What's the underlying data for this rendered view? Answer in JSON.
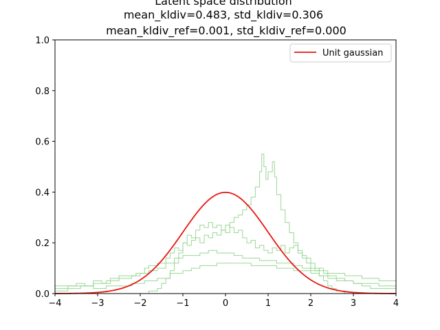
{
  "chart_data": {
    "type": "line",
    "title_lines": [
      "Latent space distribution",
      "mean_kldiv=0.483, std_kldiv=0.306",
      "mean_kldiv_ref=0.001, std_kldiv_ref=0.000"
    ],
    "xlim": [
      -4,
      4
    ],
    "ylim": [
      0,
      1.0
    ],
    "x_ticks": [
      -4,
      -3,
      -2,
      -1,
      0,
      1,
      2,
      3,
      4
    ],
    "x_tick_labels": [
      "−4",
      "−3",
      "−2",
      "−1",
      "0",
      "1",
      "2",
      "3",
      "4"
    ],
    "y_ticks": [
      0.0,
      0.2,
      0.4,
      0.6,
      0.8,
      1.0
    ],
    "y_tick_labels": [
      "0.0",
      "0.2",
      "0.4",
      "0.6",
      "0.8",
      "1.0"
    ],
    "legend": {
      "placement": "top-right",
      "entries": [
        "Unit gaussian"
      ]
    },
    "grid": false,
    "reference_curve": {
      "name": "Unit gaussian",
      "type": "normal_pdf",
      "mean": 0,
      "std": 1,
      "color": "#e8140e"
    },
    "histogram_color": "#8fd18a",
    "histograms": [
      {
        "values": [
          [
            -4.0,
            0.02
          ],
          [
            -3.7,
            0.03
          ],
          [
            -3.5,
            0.04
          ],
          [
            -3.3,
            0.03
          ],
          [
            -3.1,
            0.05
          ],
          [
            -2.9,
            0.04
          ],
          [
            -2.7,
            0.06
          ],
          [
            -2.5,
            0.07
          ],
          [
            -2.3,
            0.07
          ],
          [
            -2.1,
            0.08
          ],
          [
            -1.9,
            0.1
          ],
          [
            -1.8,
            0.11
          ],
          [
            -1.6,
            0.12
          ],
          [
            -1.4,
            0.14
          ],
          [
            -1.3,
            0.16
          ],
          [
            -1.2,
            0.18
          ],
          [
            -1.1,
            0.17
          ],
          [
            -1.0,
            0.2
          ],
          [
            -0.9,
            0.19
          ],
          [
            -0.8,
            0.21
          ],
          [
            -0.7,
            0.22
          ],
          [
            -0.6,
            0.2
          ],
          [
            -0.5,
            0.23
          ],
          [
            -0.4,
            0.22
          ],
          [
            -0.3,
            0.24
          ],
          [
            -0.2,
            0.23
          ],
          [
            -0.1,
            0.25
          ],
          [
            0.0,
            0.24
          ],
          [
            0.1,
            0.28
          ],
          [
            0.2,
            0.3
          ],
          [
            0.3,
            0.31
          ],
          [
            0.4,
            0.33
          ],
          [
            0.5,
            0.35
          ],
          [
            0.6,
            0.38
          ],
          [
            0.7,
            0.42
          ],
          [
            0.8,
            0.48
          ],
          [
            0.85,
            0.55
          ],
          [
            0.9,
            0.5
          ],
          [
            0.95,
            0.45
          ],
          [
            1.0,
            0.48
          ],
          [
            1.1,
            0.52
          ],
          [
            1.15,
            0.46
          ],
          [
            1.2,
            0.39
          ],
          [
            1.3,
            0.33
          ],
          [
            1.4,
            0.28
          ],
          [
            1.5,
            0.24
          ],
          [
            1.6,
            0.2
          ],
          [
            1.7,
            0.16
          ],
          [
            1.8,
            0.14
          ],
          [
            1.9,
            0.12
          ],
          [
            2.0,
            0.1
          ],
          [
            2.1,
            0.09
          ],
          [
            2.2,
            0.1
          ],
          [
            2.3,
            0.08
          ],
          [
            2.4,
            0.07
          ],
          [
            2.6,
            0.06
          ],
          [
            2.8,
            0.05
          ],
          [
            3.0,
            0.04
          ],
          [
            3.2,
            0.03
          ],
          [
            3.4,
            0.02
          ],
          [
            3.7,
            0.02
          ],
          [
            4.0,
            0.01
          ]
        ]
      },
      {
        "values": [
          [
            -4.0,
            0.01
          ],
          [
            -3.7,
            0.02
          ],
          [
            -3.4,
            0.03
          ],
          [
            -3.1,
            0.04
          ],
          [
            -2.8,
            0.05
          ],
          [
            -2.5,
            0.06
          ],
          [
            -2.2,
            0.07
          ],
          [
            -2.0,
            0.08
          ],
          [
            -1.8,
            0.09
          ],
          [
            -1.6,
            0.1
          ],
          [
            -1.4,
            0.12
          ],
          [
            -1.2,
            0.14
          ],
          [
            -1.0,
            0.15
          ],
          [
            -0.8,
            0.15
          ],
          [
            -0.6,
            0.16
          ],
          [
            -0.4,
            0.17
          ],
          [
            -0.2,
            0.16
          ],
          [
            0.0,
            0.16
          ],
          [
            0.2,
            0.15
          ],
          [
            0.4,
            0.14
          ],
          [
            0.6,
            0.14
          ],
          [
            0.8,
            0.13
          ],
          [
            1.0,
            0.13
          ],
          [
            1.2,
            0.12
          ],
          [
            1.4,
            0.12
          ],
          [
            1.6,
            0.11
          ],
          [
            1.8,
            0.1
          ],
          [
            2.0,
            0.09
          ],
          [
            2.2,
            0.09
          ],
          [
            2.4,
            0.08
          ],
          [
            2.6,
            0.08
          ],
          [
            2.8,
            0.07
          ],
          [
            3.0,
            0.07
          ],
          [
            3.2,
            0.06
          ],
          [
            3.4,
            0.06
          ],
          [
            3.6,
            0.05
          ],
          [
            3.8,
            0.05
          ],
          [
            4.0,
            0.05
          ]
        ]
      },
      {
        "values": [
          [
            -4.0,
            0.03
          ],
          [
            -3.7,
            0.03
          ],
          [
            -3.4,
            0.03
          ],
          [
            -3.1,
            0.02
          ],
          [
            -2.8,
            0.03
          ],
          [
            -2.5,
            0.03
          ],
          [
            -2.2,
            0.04
          ],
          [
            -1.9,
            0.05
          ],
          [
            -1.6,
            0.06
          ],
          [
            -1.3,
            0.08
          ],
          [
            -1.0,
            0.09
          ],
          [
            -0.8,
            0.1
          ],
          [
            -0.6,
            0.11
          ],
          [
            -0.4,
            0.11
          ],
          [
            -0.2,
            0.12
          ],
          [
            0.0,
            0.12
          ],
          [
            0.2,
            0.12
          ],
          [
            0.4,
            0.12
          ],
          [
            0.6,
            0.11
          ],
          [
            0.8,
            0.11
          ],
          [
            1.0,
            0.11
          ],
          [
            1.2,
            0.1
          ],
          [
            1.4,
            0.1
          ],
          [
            1.6,
            0.09
          ],
          [
            1.8,
            0.09
          ],
          [
            2.0,
            0.08
          ],
          [
            2.2,
            0.07
          ],
          [
            2.4,
            0.06
          ],
          [
            2.6,
            0.05
          ],
          [
            2.8,
            0.05
          ],
          [
            3.0,
            0.04
          ],
          [
            3.3,
            0.04
          ],
          [
            3.6,
            0.03
          ],
          [
            4.0,
            0.03
          ]
        ]
      },
      {
        "values": [
          [
            -4.0,
            0.0
          ],
          [
            -3.5,
            0.0
          ],
          [
            -3.0,
            0.0
          ],
          [
            -2.5,
            0.0
          ],
          [
            -2.0,
            0.0
          ],
          [
            -1.8,
            0.01
          ],
          [
            -1.6,
            0.02
          ],
          [
            -1.5,
            0.04
          ],
          [
            -1.4,
            0.06
          ],
          [
            -1.3,
            0.09
          ],
          [
            -1.2,
            0.12
          ],
          [
            -1.1,
            0.16
          ],
          [
            -1.0,
            0.2
          ],
          [
            -0.9,
            0.23
          ],
          [
            -0.8,
            0.22
          ],
          [
            -0.7,
            0.25
          ],
          [
            -0.6,
            0.27
          ],
          [
            -0.5,
            0.26
          ],
          [
            -0.4,
            0.28
          ],
          [
            -0.3,
            0.26
          ],
          [
            -0.2,
            0.27
          ],
          [
            -0.1,
            0.25
          ],
          [
            0.0,
            0.27
          ],
          [
            0.1,
            0.26
          ],
          [
            0.2,
            0.24
          ],
          [
            0.3,
            0.25
          ],
          [
            0.4,
            0.22
          ],
          [
            0.5,
            0.2
          ],
          [
            0.6,
            0.21
          ],
          [
            0.7,
            0.18
          ],
          [
            0.8,
            0.19
          ],
          [
            0.9,
            0.17
          ],
          [
            1.0,
            0.16
          ],
          [
            1.1,
            0.18
          ],
          [
            1.2,
            0.17
          ],
          [
            1.3,
            0.19
          ],
          [
            1.4,
            0.16
          ],
          [
            1.5,
            0.18
          ],
          [
            1.6,
            0.19
          ],
          [
            1.7,
            0.17
          ],
          [
            1.8,
            0.15
          ],
          [
            1.9,
            0.14
          ],
          [
            2.0,
            0.12
          ],
          [
            2.1,
            0.1
          ],
          [
            2.2,
            0.07
          ],
          [
            2.3,
            0.05
          ],
          [
            2.4,
            0.03
          ],
          [
            2.5,
            0.02
          ],
          [
            2.6,
            0.01
          ],
          [
            2.8,
            0.0
          ],
          [
            3.0,
            0.0
          ],
          [
            3.5,
            0.0
          ],
          [
            4.0,
            0.0
          ]
        ]
      }
    ]
  }
}
